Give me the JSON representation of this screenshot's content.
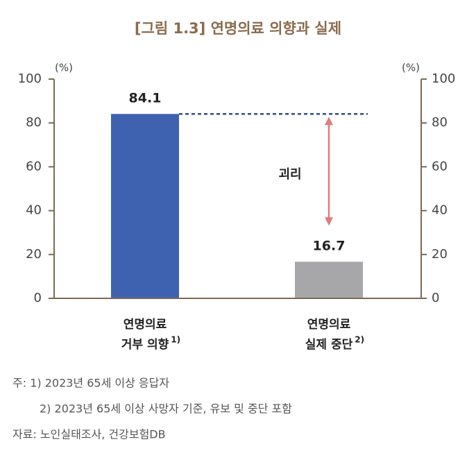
{
  "chart_data": {
    "type": "bar",
    "title": "[그림 1.3] 연명의료 의향과 실제",
    "categories": [
      [
        "연명의료",
        "거부 의향"
      ],
      [
        "연명의료",
        "실제 중단"
      ]
    ],
    "category_notes": [
      "1)",
      "2)"
    ],
    "values": [
      84.1,
      16.7
    ],
    "colors": [
      "#3e62b0",
      "#a7a7a9"
    ],
    "ylim": [
      0,
      100
    ],
    "yticks": [
      0,
      20,
      40,
      60,
      80,
      100
    ],
    "y_unit": "(%)",
    "y2lim": [
      0,
      100
    ],
    "y2ticks": [
      0,
      20,
      40,
      60,
      80,
      100
    ],
    "y2_unit": "(%)",
    "annotation": "괴리",
    "notes": [
      "주: 1) 2023년 65세 이상 응답자",
      "2) 2023년 65세 이상 사망자 기준, 유보 및 중단 포함",
      "자료: 노인실태조사, 건강보험DB"
    ]
  }
}
